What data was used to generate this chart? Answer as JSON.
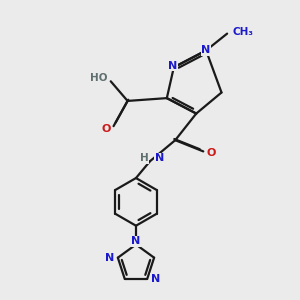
{
  "background_color": "#ebebeb",
  "bond_color": "#1a1a1a",
  "bond_width": 1.6,
  "atom_colors": {
    "N": "#1a1acc",
    "O": "#cc1a1a",
    "H": "#607070"
  },
  "figsize": [
    3.0,
    3.0
  ],
  "dpi": 100,
  "xlim": [
    0.0,
    10.0
  ],
  "ylim": [
    0.0,
    10.5
  ]
}
